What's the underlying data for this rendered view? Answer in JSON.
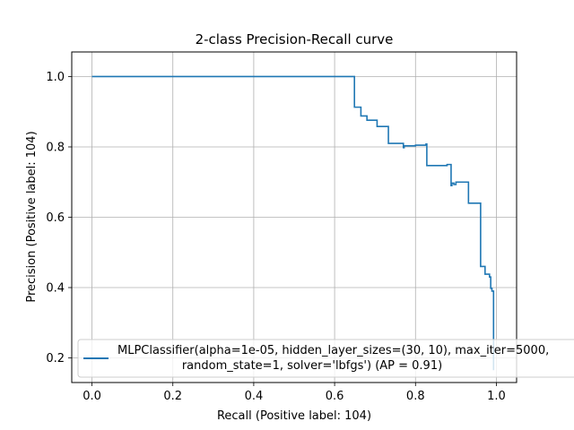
{
  "chart_data": {
    "type": "line",
    "title": "2-class Precision-Recall curve",
    "xlabel": "Recall (Positive label: 104)",
    "ylabel": "Precision (Positive label: 104)",
    "xlim": [
      -0.05,
      1.05
    ],
    "ylim": [
      0.13,
      1.07
    ],
    "xticks": [
      0.0,
      0.2,
      0.4,
      0.6,
      0.8,
      1.0
    ],
    "xtick_labels": [
      "0.0",
      "0.2",
      "0.4",
      "0.6",
      "0.8",
      "1.0"
    ],
    "yticks": [
      0.2,
      0.4,
      0.6,
      0.8,
      1.0
    ],
    "ytick_labels": [
      "0.2",
      "0.4",
      "0.6",
      "0.8",
      "1.0"
    ],
    "grid": true,
    "legend_position": "lower-left",
    "series": [
      {
        "name": "MLPClassifier(alpha=1e-05, hidden_layer_sizes=(30, 10), max_iter=5000,\nrandom_state=1, solver='lbfgs') (AP = 0.91)",
        "color": "#1f77b4",
        "drawstyle": "steps-post",
        "points": [
          [
            0.0,
            1.0
          ],
          [
            0.649,
            1.0
          ],
          [
            0.649,
            0.913
          ],
          [
            0.665,
            0.913
          ],
          [
            0.665,
            0.888
          ],
          [
            0.68,
            0.888
          ],
          [
            0.68,
            0.876
          ],
          [
            0.705,
            0.876
          ],
          [
            0.705,
            0.858
          ],
          [
            0.733,
            0.858
          ],
          [
            0.733,
            0.81
          ],
          [
            0.77,
            0.81
          ],
          [
            0.77,
            0.798
          ],
          [
            0.772,
            0.798
          ],
          [
            0.772,
            0.803
          ],
          [
            0.8,
            0.803
          ],
          [
            0.8,
            0.805
          ],
          [
            0.826,
            0.805
          ],
          [
            0.826,
            0.808
          ],
          [
            0.828,
            0.808
          ],
          [
            0.828,
            0.747
          ],
          [
            0.878,
            0.747
          ],
          [
            0.878,
            0.75
          ],
          [
            0.888,
            0.75
          ],
          [
            0.888,
            0.69
          ],
          [
            0.89,
            0.69
          ],
          [
            0.89,
            0.697
          ],
          [
            0.895,
            0.697
          ],
          [
            0.895,
            0.693
          ],
          [
            0.9,
            0.693
          ],
          [
            0.9,
            0.7
          ],
          [
            0.931,
            0.7
          ],
          [
            0.931,
            0.64
          ],
          [
            0.961,
            0.64
          ],
          [
            0.961,
            0.46
          ],
          [
            0.972,
            0.46
          ],
          [
            0.972,
            0.438
          ],
          [
            0.983,
            0.438
          ],
          [
            0.983,
            0.43
          ],
          [
            0.986,
            0.43
          ],
          [
            0.986,
            0.398
          ],
          [
            0.989,
            0.398
          ],
          [
            0.989,
            0.39
          ],
          [
            0.993,
            0.39
          ],
          [
            0.993,
            0.165
          ]
        ]
      }
    ]
  }
}
